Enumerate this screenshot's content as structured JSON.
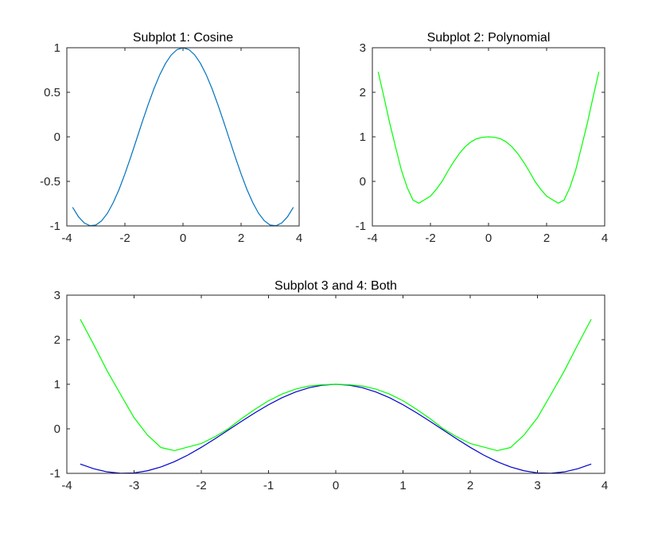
{
  "figure": {
    "background": "#ffffff"
  },
  "chart_data": [
    {
      "type": "line",
      "title": "Subplot 1: Cosine",
      "xlabel": "",
      "ylabel": "",
      "xlim": [
        -4,
        4
      ],
      "ylim": [
        -1,
        1
      ],
      "xticks": [
        -4,
        -2,
        0,
        2,
        4
      ],
      "xticklabels": [
        "-4",
        "-2",
        "0",
        "2",
        "4"
      ],
      "yticks": [
        -1,
        -0.5,
        0,
        0.5,
        1
      ],
      "yticklabels": [
        "-1",
        "-0.5",
        "0",
        "0.5",
        "1"
      ],
      "grid": false,
      "series": [
        {
          "color": "#0072BD",
          "x": [
            -3.8,
            -3.6,
            -3.4,
            -3.2,
            -3.0,
            -2.8,
            -2.6,
            -2.4,
            -2.2,
            -2.0,
            -1.8,
            -1.6,
            -1.4,
            -1.2,
            -1.0,
            -0.8,
            -0.6,
            -0.4,
            -0.2,
            0.0,
            0.2,
            0.4,
            0.6,
            0.8,
            1.0,
            1.2,
            1.4,
            1.6,
            1.8,
            2.0,
            2.2,
            2.4,
            2.6,
            2.8,
            3.0,
            3.2,
            3.4,
            3.6,
            3.8
          ],
          "y": [
            -0.791,
            -0.897,
            -0.967,
            -0.998,
            -0.99,
            -0.942,
            -0.857,
            -0.737,
            -0.589,
            -0.416,
            -0.227,
            -0.029,
            0.17,
            0.362,
            0.54,
            0.697,
            0.825,
            0.921,
            0.98,
            1.0,
            0.98,
            0.921,
            0.825,
            0.697,
            0.54,
            0.362,
            0.17,
            -0.029,
            -0.227,
            -0.416,
            -0.589,
            -0.737,
            -0.857,
            -0.942,
            -0.99,
            -0.998,
            -0.967,
            -0.897,
            -0.791
          ]
        }
      ]
    },
    {
      "type": "line",
      "title": "Subplot 2: Polynomial",
      "xlabel": "",
      "ylabel": "",
      "xlim": [
        -4,
        4
      ],
      "ylim": [
        -1,
        3
      ],
      "xticks": [
        -4,
        -2,
        0,
        2,
        4
      ],
      "xticklabels": [
        "-4",
        "-2",
        "0",
        "2",
        "4"
      ],
      "yticks": [
        -1,
        0,
        1,
        2,
        3
      ],
      "yticklabels": [
        "-1",
        "0",
        "1",
        "2",
        "3"
      ],
      "grid": false,
      "series": [
        {
          "color": "#00FF00",
          "x": [
            -3.8,
            -3.6,
            -3.4,
            -3.2,
            -3.0,
            -2.8,
            -2.6,
            -2.4,
            -2.2,
            -2.0,
            -1.8,
            -1.6,
            -1.4,
            -1.2,
            -1.0,
            -0.8,
            -0.6,
            -0.4,
            -0.2,
            0.0,
            0.2,
            0.4,
            0.6,
            0.8,
            1.0,
            1.2,
            1.4,
            1.6,
            1.8,
            2.0,
            2.2,
            2.4,
            2.6,
            2.8,
            3.0,
            3.2,
            3.4,
            3.6,
            3.8
          ],
          "y": [
            2.46,
            1.89,
            1.3,
            0.77,
            0.25,
            -0.14,
            -0.42,
            -0.49,
            -0.41,
            -0.33,
            -0.18,
            0.0,
            0.23,
            0.44,
            0.63,
            0.78,
            0.89,
            0.96,
            0.99,
            1.0,
            0.99,
            0.96,
            0.89,
            0.78,
            0.63,
            0.44,
            0.23,
            0.0,
            -0.18,
            -0.33,
            -0.41,
            -0.49,
            -0.42,
            -0.14,
            0.25,
            0.77,
            1.3,
            1.89,
            2.46
          ]
        }
      ]
    },
    {
      "type": "line",
      "title": "Subplot 3 and 4: Both",
      "xlabel": "",
      "ylabel": "",
      "xlim": [
        -4,
        4
      ],
      "ylim": [
        -1,
        3
      ],
      "xticks": [
        -4,
        -3,
        -2,
        -1,
        0,
        1,
        2,
        3,
        4
      ],
      "xticklabels": [
        "-4",
        "-3",
        "-2",
        "-1",
        "0",
        "1",
        "2",
        "3",
        "4"
      ],
      "yticks": [
        -1,
        0,
        1,
        2,
        3
      ],
      "yticklabels": [
        "-1",
        "0",
        "1",
        "2",
        "3"
      ],
      "grid": false,
      "series": [
        {
          "color": "#0000CC",
          "x": [
            -3.8,
            -3.6,
            -3.4,
            -3.2,
            -3.0,
            -2.8,
            -2.6,
            -2.4,
            -2.2,
            -2.0,
            -1.8,
            -1.6,
            -1.4,
            -1.2,
            -1.0,
            -0.8,
            -0.6,
            -0.4,
            -0.2,
            0.0,
            0.2,
            0.4,
            0.6,
            0.8,
            1.0,
            1.2,
            1.4,
            1.6,
            1.8,
            2.0,
            2.2,
            2.4,
            2.6,
            2.8,
            3.0,
            3.2,
            3.4,
            3.6,
            3.8
          ],
          "y": [
            -0.791,
            -0.897,
            -0.967,
            -0.998,
            -0.99,
            -0.942,
            -0.857,
            -0.737,
            -0.589,
            -0.416,
            -0.227,
            -0.029,
            0.17,
            0.362,
            0.54,
            0.697,
            0.825,
            0.921,
            0.98,
            1.0,
            0.98,
            0.921,
            0.825,
            0.697,
            0.54,
            0.362,
            0.17,
            -0.029,
            -0.227,
            -0.416,
            -0.589,
            -0.737,
            -0.857,
            -0.942,
            -0.99,
            -0.998,
            -0.967,
            -0.897,
            -0.791
          ]
        },
        {
          "color": "#00FF00",
          "x": [
            -3.8,
            -3.6,
            -3.4,
            -3.2,
            -3.0,
            -2.8,
            -2.6,
            -2.4,
            -2.2,
            -2.0,
            -1.8,
            -1.6,
            -1.4,
            -1.2,
            -1.0,
            -0.8,
            -0.6,
            -0.4,
            -0.2,
            0.0,
            0.2,
            0.4,
            0.6,
            0.8,
            1.0,
            1.2,
            1.4,
            1.6,
            1.8,
            2.0,
            2.2,
            2.4,
            2.6,
            2.8,
            3.0,
            3.2,
            3.4,
            3.6,
            3.8
          ],
          "y": [
            2.46,
            1.89,
            1.3,
            0.77,
            0.25,
            -0.14,
            -0.42,
            -0.49,
            -0.41,
            -0.33,
            -0.18,
            0.0,
            0.23,
            0.44,
            0.63,
            0.78,
            0.89,
            0.96,
            0.99,
            1.0,
            0.99,
            0.96,
            0.89,
            0.78,
            0.63,
            0.44,
            0.23,
            0.0,
            -0.18,
            -0.33,
            -0.41,
            -0.49,
            -0.42,
            -0.14,
            0.25,
            0.77,
            1.3,
            1.89,
            2.46
          ]
        }
      ]
    }
  ]
}
